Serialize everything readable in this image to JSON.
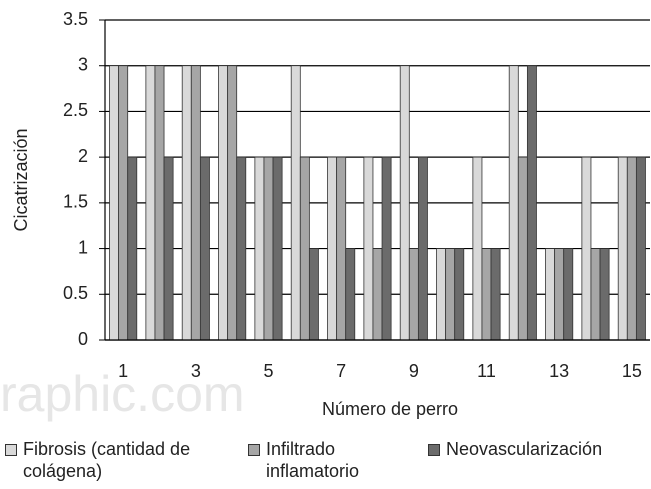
{
  "chart_data": {
    "type": "bar",
    "y_label": "Cicatrización",
    "x_label": "Número de perro",
    "watermark": "raphic.com",
    "categories": [
      "1",
      null,
      "3",
      null,
      "5",
      null,
      "7",
      null,
      "9",
      null,
      "11",
      null,
      "13",
      null,
      "15"
    ],
    "series": [
      {
        "name": "Fibrosis (cantidad de colágena)",
        "color": "#d9d9d9",
        "values": [
          3,
          3,
          3,
          3,
          2,
          3,
          2,
          2,
          3,
          1,
          2,
          3,
          1,
          2,
          2
        ]
      },
      {
        "name": "Infiltrado inflamatorio",
        "color": "#a6a6a6",
        "values": [
          3,
          3,
          3,
          3,
          2,
          2,
          2,
          1,
          1,
          1,
          1,
          2,
          1,
          1,
          2
        ]
      },
      {
        "name": "Neovascularización",
        "color": "#6b6b6b",
        "values": [
          2,
          2,
          2,
          2,
          2,
          1,
          1,
          2,
          2,
          1,
          1,
          3,
          1,
          1,
          2
        ]
      }
    ],
    "ylim": [
      0,
      3.5
    ],
    "yticks": [
      0,
      0.5,
      1,
      1.5,
      2,
      2.5,
      3,
      3.5
    ],
    "grid": true,
    "legend": "bottom"
  }
}
